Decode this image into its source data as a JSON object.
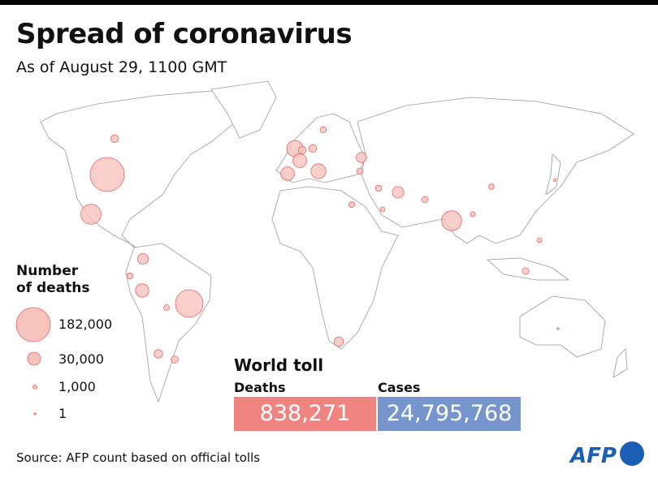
{
  "header": {
    "title": "Spread of coronavirus",
    "subtitle": "As of August 29, 1100 GMT"
  },
  "legend": {
    "title_line1": "Number",
    "title_line2": "of deaths",
    "items": [
      {
        "label": "182,000",
        "value": 182000
      },
      {
        "label": "30,000",
        "value": 30000
      },
      {
        "label": "1,000",
        "value": 1000
      },
      {
        "label": "1",
        "value": 1
      }
    ]
  },
  "world_toll": {
    "title": "World toll",
    "deaths_label": "Deaths",
    "deaths_value": "838,271",
    "cases_label": "Cases",
    "cases_value": "24,795,768"
  },
  "source": "Source: AFP count based on official tolls",
  "logo": "AFP",
  "colors": {
    "bubble_fill": "#f6c3bd",
    "bubble_stroke": "#e8655f",
    "deaths_box": "#f08480",
    "cases_box": "#7595cc",
    "land_stroke": "#9a9a9a",
    "logo": "#1a5fb4"
  },
  "map_bubbles": [
    {
      "place": "United States",
      "deaths": 182000
    },
    {
      "place": "Brazil",
      "deaths": 119000
    },
    {
      "place": "Mexico",
      "deaths": 63000
    },
    {
      "place": "India",
      "deaths": 62000
    },
    {
      "place": "United Kingdom",
      "deaths": 41000
    },
    {
      "place": "Italy",
      "deaths": 35000
    },
    {
      "place": "France",
      "deaths": 30000
    },
    {
      "place": "Spain",
      "deaths": 29000
    },
    {
      "place": "Peru",
      "deaths": 28000
    },
    {
      "place": "Iran",
      "deaths": 21000
    },
    {
      "place": "Colombia",
      "deaths": 18000
    },
    {
      "place": "Russia",
      "deaths": 17000
    },
    {
      "place": "South Africa",
      "deaths": 14000
    },
    {
      "place": "Chile",
      "deaths": 11000
    },
    {
      "place": "Argentina",
      "deaths": 8000
    },
    {
      "place": "Canada",
      "deaths": 9000
    },
    {
      "place": "Ecuador",
      "deaths": 6000
    },
    {
      "place": "Indonesia",
      "deaths": 7000
    },
    {
      "place": "Germany",
      "deaths": 9000
    },
    {
      "place": "Belgium",
      "deaths": 9000
    },
    {
      "place": "Sweden",
      "deaths": 5800
    },
    {
      "place": "Pakistan",
      "deaths": 6300
    },
    {
      "place": "Turkey",
      "deaths": 6200
    },
    {
      "place": "Bolivia",
      "deaths": 5000
    },
    {
      "place": "Philippines",
      "deaths": 3500
    },
    {
      "place": "Egypt",
      "deaths": 5400
    },
    {
      "place": "Iraq",
      "deaths": 6000
    },
    {
      "place": "Saudi Arabia",
      "deaths": 3800
    },
    {
      "place": "Bangladesh",
      "deaths": 4000
    },
    {
      "place": "China",
      "deaths": 4600
    },
    {
      "place": "Australia",
      "deaths": 600
    },
    {
      "place": "Japan",
      "deaths": 1200
    }
  ]
}
